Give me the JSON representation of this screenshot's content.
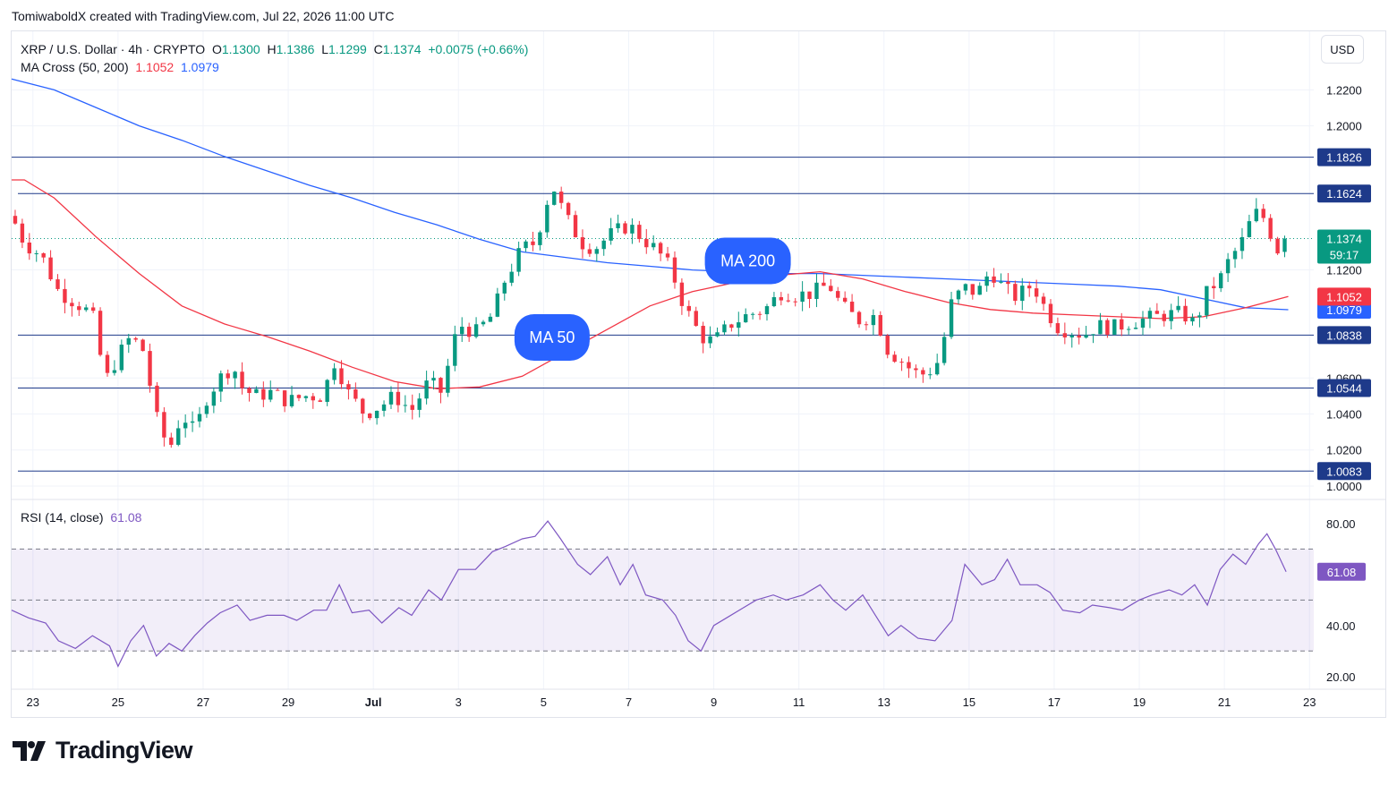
{
  "credit": "TomiwaboldX created with TradingView.com, Jul 22, 2026 11:00 UTC",
  "legend": {
    "symbol": "XRP / U.S. Dollar · 4h · CRYPTO",
    "o_label": "O",
    "o": "1.1300",
    "h_label": "H",
    "h": "1.1386",
    "l_label": "L",
    "l": "1.1299",
    "c_label": "C",
    "c": "1.1374",
    "change": "+0.0075 (+0.66%)",
    "ma_title": "MA Cross (50, 200)",
    "ma50_value": "1.1052",
    "ma200_value": "1.0979",
    "rsi_title": "RSI (14, close)",
    "rsi_value": "61.08"
  },
  "currency": "USD",
  "brand": "TradingView",
  "colors": {
    "up": "#089981",
    "down": "#f23645",
    "ma50": "#f23645",
    "ma200": "#2962ff",
    "hline": "#1e3a8a",
    "rsi": "#7e57c2",
    "label_blue": "#2962ff"
  },
  "chart_data": [
    {
      "type": "candlestick",
      "title": "XRP / U.S. Dollar · 4h · CRYPTO",
      "x_ticks": [
        "23",
        "25",
        "27",
        "29",
        "Jul",
        "3",
        "5",
        "7",
        "9",
        "11",
        "13",
        "15",
        "17",
        "19",
        "21",
        "23"
      ],
      "x_tick_days": [
        23,
        25,
        27,
        29,
        31,
        33,
        35,
        37,
        39,
        41,
        43,
        45,
        47,
        49,
        51,
        53
      ],
      "x_range_days": [
        22.5,
        53.1
      ],
      "y_range": [
        0.999,
        1.25
      ],
      "y_ticks": [
        "1.2200",
        "1.2000",
        "1.1200",
        "1.0600",
        "1.0400",
        "1.0200",
        "1.0000"
      ],
      "horizontal_levels": [
        {
          "price": 1.1826,
          "label": "1.1826"
        },
        {
          "price": 1.1624,
          "label": "1.1624"
        },
        {
          "price": 1.0838,
          "label": "1.0838"
        },
        {
          "price": 1.0544,
          "label": "1.0544"
        },
        {
          "price": 1.0083,
          "label": "1.0083"
        }
      ],
      "last_price": {
        "price": 1.1374,
        "label": "1.1374",
        "countdown": "59:17"
      },
      "ma50_last": {
        "price": 1.1052,
        "label": "1.1052"
      },
      "ma200_last": {
        "price": 1.0979,
        "label": "1.0979"
      },
      "annotations": [
        {
          "text": "MA 200",
          "day": 39.8,
          "price": 1.125
        },
        {
          "text": "MA 50",
          "day": 35.2,
          "price": 1.0825
        }
      ],
      "anchors": [
        [
          22.5,
          1.15
        ],
        [
          22.8,
          1.135
        ],
        [
          23.2,
          1.128
        ],
        [
          23.6,
          1.108
        ],
        [
          24.0,
          1.102
        ],
        [
          24.4,
          1.095
        ],
        [
          24.7,
          1.058
        ],
        [
          25.0,
          1.072
        ],
        [
          25.3,
          1.083
        ],
        [
          25.6,
          1.075
        ],
        [
          25.9,
          1.038
        ],
        [
          26.2,
          1.02
        ],
        [
          26.5,
          1.04
        ],
        [
          26.8,
          1.03
        ],
        [
          27.1,
          1.05
        ],
        [
          27.4,
          1.06
        ],
        [
          27.7,
          1.067
        ],
        [
          27.9,
          1.055
        ],
        [
          28.2,
          1.05
        ],
        [
          28.6,
          1.052
        ],
        [
          29.0,
          1.047
        ],
        [
          29.4,
          1.05
        ],
        [
          29.8,
          1.05
        ],
        [
          30.1,
          1.07
        ],
        [
          30.4,
          1.052
        ],
        [
          30.8,
          1.04
        ],
        [
          31.2,
          1.045
        ],
        [
          31.5,
          1.05
        ],
        [
          31.9,
          1.042
        ],
        [
          32.3,
          1.058
        ],
        [
          32.6,
          1.052
        ],
        [
          33.0,
          1.09
        ],
        [
          33.4,
          1.085
        ],
        [
          33.8,
          1.095
        ],
        [
          34.1,
          1.115
        ],
        [
          34.5,
          1.132
        ],
        [
          34.8,
          1.135
        ],
        [
          35.2,
          1.168
        ],
        [
          35.5,
          1.15
        ],
        [
          35.9,
          1.135
        ],
        [
          36.2,
          1.132
        ],
        [
          36.6,
          1.14
        ],
        [
          37.0,
          1.145
        ],
        [
          37.3,
          1.138
        ],
        [
          37.7,
          1.13
        ],
        [
          38.0,
          1.12
        ],
        [
          38.3,
          1.1
        ],
        [
          38.7,
          1.083
        ],
        [
          39.0,
          1.08
        ],
        [
          39.4,
          1.09
        ],
        [
          39.8,
          1.095
        ],
        [
          40.2,
          1.098
        ],
        [
          40.6,
          1.108
        ],
        [
          40.9,
          1.106
        ],
        [
          41.3,
          1.107
        ],
        [
          41.7,
          1.112
        ],
        [
          42.0,
          1.1
        ],
        [
          42.4,
          1.092
        ],
        [
          42.8,
          1.095
        ],
        [
          43.1,
          1.075
        ],
        [
          43.4,
          1.07
        ],
        [
          43.7,
          1.063
        ],
        [
          44.0,
          1.062
        ],
        [
          44.3,
          1.07
        ],
        [
          44.6,
          1.103
        ],
        [
          44.9,
          1.11
        ],
        [
          45.2,
          1.107
        ],
        [
          45.5,
          1.12
        ],
        [
          45.8,
          1.11
        ],
        [
          46.1,
          1.105
        ],
        [
          46.5,
          1.112
        ],
        [
          46.8,
          1.098
        ],
        [
          47.1,
          1.088
        ],
        [
          47.4,
          1.086
        ],
        [
          47.7,
          1.084
        ],
        [
          48.0,
          1.089
        ],
        [
          48.4,
          1.088
        ],
        [
          48.8,
          1.091
        ],
        [
          49.2,
          1.093
        ],
        [
          49.6,
          1.095
        ],
        [
          50.0,
          1.096
        ],
        [
          50.3,
          1.09
        ],
        [
          50.6,
          1.108
        ],
        [
          50.9,
          1.115
        ],
        [
          51.1,
          1.125
        ],
        [
          51.4,
          1.135
        ],
        [
          51.7,
          1.152
        ],
        [
          52.0,
          1.148
        ],
        [
          52.2,
          1.13
        ],
        [
          52.45,
          1.1374
        ]
      ],
      "ma50": [
        [
          22.5,
          1.17
        ],
        [
          22.8,
          1.17
        ],
        [
          23.5,
          1.16
        ],
        [
          24.5,
          1.138
        ],
        [
          25.5,
          1.118
        ],
        [
          26.5,
          1.1
        ],
        [
          27.5,
          1.09
        ],
        [
          28.5,
          1.083
        ],
        [
          29.5,
          1.075
        ],
        [
          30.5,
          1.066
        ],
        [
          31.5,
          1.058
        ],
        [
          32.5,
          1.054
        ],
        [
          33.5,
          1.055
        ],
        [
          34.5,
          1.061
        ],
        [
          35.5,
          1.074
        ],
        [
          36.5,
          1.087
        ],
        [
          37.5,
          1.1
        ],
        [
          38.5,
          1.108
        ],
        [
          39.5,
          1.113
        ],
        [
          40.5,
          1.117
        ],
        [
          41.5,
          1.119
        ],
        [
          42.5,
          1.115
        ],
        [
          43.5,
          1.108
        ],
        [
          44.5,
          1.102
        ],
        [
          45.5,
          1.098
        ],
        [
          46.5,
          1.096
        ],
        [
          47.5,
          1.095
        ],
        [
          48.5,
          1.094
        ],
        [
          49.5,
          1.093
        ],
        [
          50.5,
          1.094
        ],
        [
          51.5,
          1.099
        ],
        [
          52.5,
          1.1052
        ]
      ],
      "ma200": [
        [
          22.5,
          1.226
        ],
        [
          23.5,
          1.22
        ],
        [
          24.5,
          1.21
        ],
        [
          25.5,
          1.2
        ],
        [
          26.5,
          1.192
        ],
        [
          27.5,
          1.183
        ],
        [
          28.5,
          1.175
        ],
        [
          29.5,
          1.167
        ],
        [
          30.5,
          1.16
        ],
        [
          31.5,
          1.152
        ],
        [
          32.5,
          1.145
        ],
        [
          33.5,
          1.137
        ],
        [
          34.5,
          1.13
        ],
        [
          35.5,
          1.127
        ],
        [
          36.5,
          1.124
        ],
        [
          37.5,
          1.122
        ],
        [
          38.5,
          1.12
        ],
        [
          39.5,
          1.119
        ],
        [
          40.5,
          1.118
        ],
        [
          41.5,
          1.118
        ],
        [
          42.5,
          1.117
        ],
        [
          43.5,
          1.116
        ],
        [
          44.5,
          1.115
        ],
        [
          45.5,
          1.114
        ],
        [
          46.5,
          1.113
        ],
        [
          47.5,
          1.112
        ],
        [
          48.5,
          1.111
        ],
        [
          49.5,
          1.109
        ],
        [
          50.5,
          1.104
        ],
        [
          51.5,
          1.099
        ],
        [
          52.5,
          1.0979
        ]
      ]
    },
    {
      "type": "line",
      "title": "RSI (14, close)",
      "y_range": [
        15,
        87
      ],
      "y_ticks": [
        "80.00",
        "40.00",
        "20.00"
      ],
      "bands": [
        70,
        50,
        30
      ],
      "last_value": {
        "value": 61.08,
        "label": "61.08"
      },
      "points": [
        [
          22.5,
          46
        ],
        [
          22.9,
          43
        ],
        [
          23.3,
          41
        ],
        [
          23.6,
          34
        ],
        [
          24.0,
          31
        ],
        [
          24.4,
          36
        ],
        [
          24.8,
          32
        ],
        [
          25.0,
          24
        ],
        [
          25.3,
          34
        ],
        [
          25.6,
          40
        ],
        [
          25.9,
          28
        ],
        [
          26.2,
          33
        ],
        [
          26.5,
          30
        ],
        [
          26.8,
          36
        ],
        [
          27.1,
          41
        ],
        [
          27.4,
          45
        ],
        [
          27.8,
          48
        ],
        [
          28.1,
          42
        ],
        [
          28.5,
          44
        ],
        [
          28.9,
          44
        ],
        [
          29.2,
          42
        ],
        [
          29.6,
          46
        ],
        [
          29.9,
          46
        ],
        [
          30.2,
          56
        ],
        [
          30.5,
          45
        ],
        [
          30.9,
          46
        ],
        [
          31.2,
          41
        ],
        [
          31.6,
          47
        ],
        [
          31.9,
          44
        ],
        [
          32.3,
          54
        ],
        [
          32.6,
          50
        ],
        [
          33.0,
          62
        ],
        [
          33.4,
          62
        ],
        [
          33.8,
          69
        ],
        [
          34.1,
          71
        ],
        [
          34.5,
          74
        ],
        [
          34.8,
          75
        ],
        [
          35.1,
          81
        ],
        [
          35.4,
          74
        ],
        [
          35.8,
          64
        ],
        [
          36.1,
          60
        ],
        [
          36.5,
          67
        ],
        [
          36.8,
          56
        ],
        [
          37.1,
          64
        ],
        [
          37.4,
          52
        ],
        [
          37.8,
          50
        ],
        [
          38.1,
          44
        ],
        [
          38.4,
          34
        ],
        [
          38.7,
          30
        ],
        [
          39.0,
          40
        ],
        [
          39.3,
          43
        ],
        [
          39.7,
          47
        ],
        [
          40.0,
          50
        ],
        [
          40.4,
          52
        ],
        [
          40.7,
          50
        ],
        [
          41.1,
          52
        ],
        [
          41.5,
          56
        ],
        [
          41.8,
          50
        ],
        [
          42.1,
          46
        ],
        [
          42.5,
          52
        ],
        [
          42.8,
          44
        ],
        [
          43.1,
          36
        ],
        [
          43.4,
          40
        ],
        [
          43.8,
          35
        ],
        [
          44.2,
          34
        ],
        [
          44.6,
          42
        ],
        [
          44.9,
          64
        ],
        [
          45.3,
          56
        ],
        [
          45.6,
          58
        ],
        [
          45.9,
          66
        ],
        [
          46.2,
          56
        ],
        [
          46.6,
          56
        ],
        [
          46.9,
          53
        ],
        [
          47.2,
          46
        ],
        [
          47.6,
          45
        ],
        [
          47.9,
          48
        ],
        [
          48.3,
          47
        ],
        [
          48.6,
          46
        ],
        [
          49.0,
          50
        ],
        [
          49.3,
          52
        ],
        [
          49.7,
          54
        ],
        [
          50.0,
          52
        ],
        [
          50.3,
          56
        ],
        [
          50.6,
          48
        ],
        [
          50.9,
          62
        ],
        [
          51.2,
          68
        ],
        [
          51.5,
          64
        ],
        [
          51.8,
          72
        ],
        [
          52.0,
          76
        ],
        [
          52.2,
          70
        ],
        [
          52.45,
          61.08
        ]
      ]
    }
  ]
}
